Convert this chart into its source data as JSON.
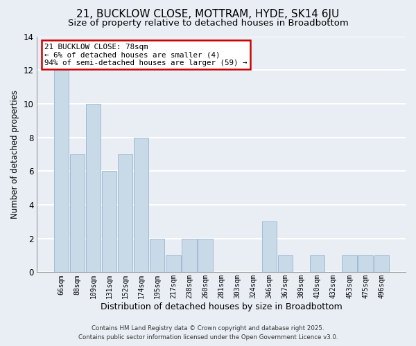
{
  "title": "21, BUCKLOW CLOSE, MOTTRAM, HYDE, SK14 6JU",
  "subtitle": "Size of property relative to detached houses in Broadbottom",
  "xlabel": "Distribution of detached houses by size in Broadbottom",
  "ylabel": "Number of detached properties",
  "bar_color": "#c8d9e8",
  "bar_edge_color": "#a0bcd4",
  "categories": [
    "66sqm",
    "88sqm",
    "109sqm",
    "131sqm",
    "152sqm",
    "174sqm",
    "195sqm",
    "217sqm",
    "238sqm",
    "260sqm",
    "281sqm",
    "303sqm",
    "324sqm",
    "346sqm",
    "367sqm",
    "389sqm",
    "410sqm",
    "432sqm",
    "453sqm",
    "475sqm",
    "496sqm"
  ],
  "values": [
    12,
    7,
    10,
    6,
    7,
    8,
    2,
    1,
    2,
    2,
    0,
    0,
    0,
    3,
    1,
    0,
    1,
    0,
    1,
    1,
    1
  ],
  "ylim": [
    0,
    14
  ],
  "yticks": [
    0,
    2,
    4,
    6,
    8,
    10,
    12,
    14
  ],
  "annotation_title": "21 BUCKLOW CLOSE: 78sqm",
  "annotation_line1": "← 6% of detached houses are smaller (4)",
  "annotation_line2": "94% of semi-detached houses are larger (59) →",
  "annotation_box_color": "#ffffff",
  "annotation_box_edge": "#cc0000",
  "footer_line1": "Contains HM Land Registry data © Crown copyright and database right 2025.",
  "footer_line2": "Contains public sector information licensed under the Open Government Licence v3.0.",
  "background_color": "#e8eef4",
  "grid_color": "#ffffff",
  "title_fontsize": 11,
  "subtitle_fontsize": 9.5,
  "ylabel_fontsize": 8.5,
  "xlabel_fontsize": 9
}
